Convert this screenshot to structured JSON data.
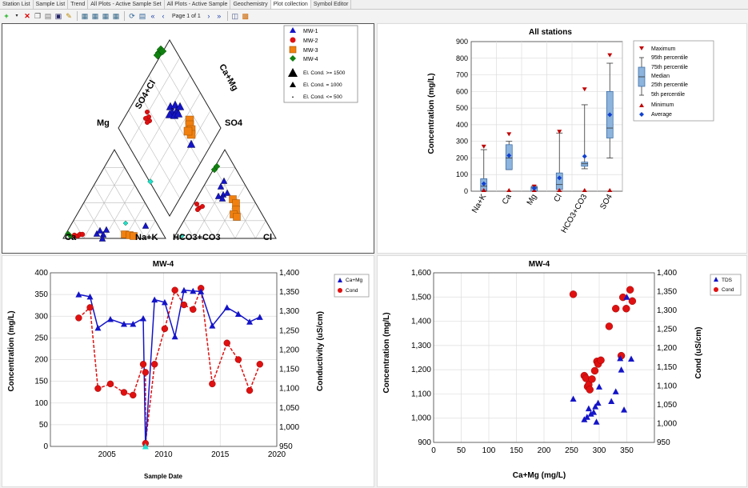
{
  "tabs": [
    "Station List",
    "Sample List",
    "Trend",
    "All Plots - Active Sample Set",
    "All Plots - Active Sample",
    "Geochemistry",
    "Plot collection",
    "Symbol Editor"
  ],
  "active_tab": 6,
  "toolbar": {
    "page_label": "Page 1 of 1"
  },
  "colors": {
    "mw1": "#1414c8",
    "mw2": "#e01010",
    "mw3": "#f08010",
    "mw4": "#108010",
    "cyan": "#20e0d0",
    "box": "#8cb4dc",
    "boxstroke": "#3264a0",
    "max": "#c00000",
    "min": "#c00000",
    "avg": "#1040d0"
  },
  "piper": {
    "labels": {
      "so4cl": "SO4+Cl",
      "camg": "Ca+Mg",
      "mg": "Mg",
      "so4": "SO4",
      "ca": "Ca",
      "nak": "Na+K",
      "hco3": "HCO3+CO3",
      "cl": "Cl"
    },
    "legend": [
      {
        "name": "MW-1",
        "marker": "triangle",
        "color": "#1414c8"
      },
      {
        "name": "MW-2",
        "marker": "circle",
        "color": "#e01010"
      },
      {
        "name": "MW-3",
        "marker": "square",
        "color": "#f08010"
      },
      {
        "name": "MW-4",
        "marker": "diamond",
        "color": "#108010"
      }
    ],
    "size_legend": [
      "El. Cond. >= 1500",
      "El. Cond. = 1000",
      "El. Cond. <= 500"
    ]
  },
  "chart_data": [
    {
      "type": "box",
      "title": "All stations",
      "ylabel": "Concentration (mg/L)",
      "ylim": [
        0,
        900
      ],
      "yticks": [
        0,
        100,
        200,
        300,
        400,
        500,
        600,
        700,
        800,
        900
      ],
      "categories": [
        "Na+K",
        "Ca",
        "Mg",
        "Cl",
        "HCO3+CO3",
        "SO4"
      ],
      "boxes": [
        {
          "min": 0,
          "p5": 0,
          "p25": 5,
          "median": 30,
          "p75": 75,
          "p95": 250,
          "max": 270,
          "avg": 45
        },
        {
          "min": 0,
          "p5": 130,
          "p25": 130,
          "median": 200,
          "p75": 280,
          "p95": 300,
          "max": 345,
          "avg": 215
        },
        {
          "min": 0,
          "p5": 0,
          "p25": 0,
          "median": 20,
          "p75": 25,
          "p95": 30,
          "max": 30,
          "avg": 18
        },
        {
          "min": 0,
          "p5": 0,
          "p25": 10,
          "median": 40,
          "p75": 110,
          "p95": 350,
          "max": 360,
          "avg": 80
        },
        {
          "min": 0,
          "p5": 135,
          "p25": 150,
          "median": 165,
          "p75": 175,
          "p95": 520,
          "max": 615,
          "avg": 210
        },
        {
          "min": 0,
          "p5": 200,
          "p25": 320,
          "median": 380,
          "p75": 600,
          "p95": 770,
          "max": 820,
          "avg": 460
        }
      ],
      "legend": [
        "Maximum",
        "95th percentile",
        "75th percentile",
        "Median",
        "25th percentile",
        "5th percentile",
        "Minimum",
        "Average"
      ]
    },
    {
      "type": "line",
      "title": "MW-4",
      "xlabel": "Sample Date",
      "ylabel": "Concentration (mg/L)",
      "y2label": "Conductivity (uS/cm)",
      "xlim": [
        2000,
        2020
      ],
      "xticks": [
        2005,
        2010,
        2015,
        2020
      ],
      "ylim": [
        0,
        400
      ],
      "yticks": [
        0,
        50,
        100,
        150,
        200,
        250,
        300,
        350,
        400
      ],
      "y2lim": [
        950,
        1400
      ],
      "y2ticks": [
        "950",
        "1,000",
        "1,050",
        "1,100",
        "1,150",
        "1,200",
        "1,250",
        "1,300",
        "1,350",
        "1,400"
      ],
      "series": [
        {
          "name": "Ca+Mg",
          "axis": "left",
          "x": [
            2002.5,
            2003.5,
            2004.2,
            2005.3,
            2006.5,
            2007.3,
            2008.2,
            2008.4,
            2009.2,
            2010.1,
            2011.0,
            2011.8,
            2012.6,
            2013.3,
            2014.3,
            2015.6,
            2016.6,
            2017.6,
            2018.5
          ],
          "y": [
            350,
            345,
            273,
            293,
            282,
            282,
            295,
            0,
            338,
            332,
            253,
            360,
            358,
            357,
            278,
            320,
            305,
            287,
            298
          ]
        },
        {
          "name": "Cond",
          "axis": "right",
          "x": [
            2002.5,
            2003.5,
            2004.2,
            2005.3,
            2006.5,
            2007.3,
            2008.2,
            2008.4,
            2008.4,
            2009.2,
            2010.1,
            2011.0,
            2011.8,
            2012.6,
            2013.3,
            2014.3,
            2015.6,
            2016.6,
            2017.6,
            2018.5
          ],
          "y": [
            1283,
            1310,
            1100,
            1112,
            1090,
            1083,
            1163,
            1142,
            958,
            1163,
            1255,
            1355,
            1317,
            1305,
            1360,
            1112,
            1218,
            1175,
            1095,
            1163
          ]
        }
      ]
    },
    {
      "type": "scatter",
      "title": "MW-4",
      "xlabel": "Ca+Mg (mg/L)",
      "ylabel": "Concentration (mg/L)",
      "y2label": "Cond (uS/cm)",
      "xlim": [
        0,
        400
      ],
      "xticks": [
        0,
        50,
        100,
        150,
        200,
        250,
        300,
        350
      ],
      "ylim": [
        900,
        1600
      ],
      "yticks": [
        "900",
        "1,000",
        "1,100",
        "1,200",
        "1,300",
        "1,400",
        "1,500",
        "1,600"
      ],
      "y2lim": [
        950,
        1400
      ],
      "y2ticks": [
        "950",
        "1,000",
        "1,050",
        "1,100",
        "1,150",
        "1,200",
        "1,250",
        "1,300",
        "1,350",
        "1,400"
      ],
      "series": [
        {
          "name": "TDS",
          "axis": "left",
          "x": [
            253,
            273,
            278,
            281,
            285,
            290,
            293,
            295,
            298,
            300,
            322,
            330,
            338,
            340,
            345,
            350,
            358
          ],
          "y": [
            1080,
            995,
            1005,
            1040,
            1018,
            1025,
            1048,
            985,
            1063,
            1130,
            1070,
            1110,
            1247,
            1200,
            1035,
            1500,
            1245
          ]
        },
        {
          "name": "Cond",
          "axis": "right",
          "x": [
            253,
            273,
            276,
            279,
            281,
            283,
            287,
            292,
            296,
            298,
            303,
            318,
            330,
            340,
            343,
            349,
            356,
            360
          ],
          "y": [
            1343,
            1127,
            1120,
            1098,
            1103,
            1090,
            1118,
            1140,
            1165,
            1158,
            1168,
            1258,
            1305,
            1180,
            1335,
            1305,
            1355,
            1325
          ]
        }
      ]
    }
  ]
}
